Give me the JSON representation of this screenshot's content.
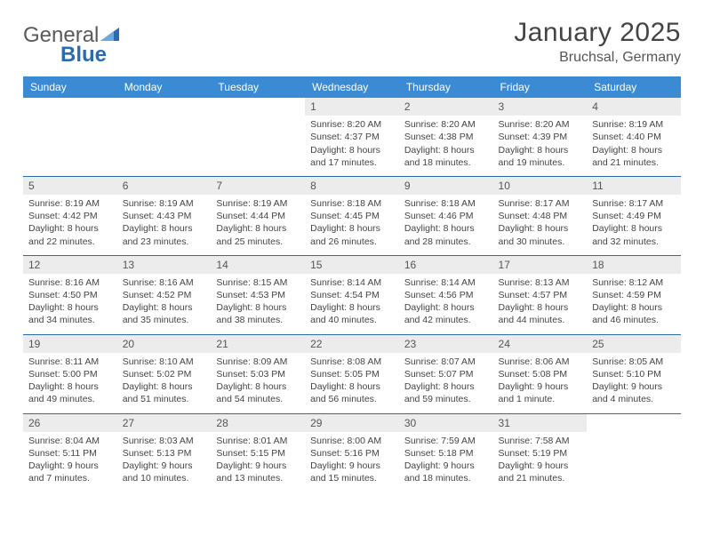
{
  "brand": {
    "part1": "General",
    "part2": "Blue"
  },
  "title": "January 2025",
  "location": "Bruchsal, Germany",
  "colors": {
    "header_bg": "#3b8bd4",
    "header_text": "#ffffff",
    "sep_border": "#2b6cb0",
    "daynum_bg": "#ececec",
    "text": "#444444"
  },
  "dayHeaders": [
    "Sunday",
    "Monday",
    "Tuesday",
    "Wednesday",
    "Thursday",
    "Friday",
    "Saturday"
  ],
  "weeks": [
    [
      null,
      null,
      null,
      {
        "n": "1",
        "sunrise": "8:20 AM",
        "sunset": "4:37 PM",
        "dlh": "8",
        "dlm": "17"
      },
      {
        "n": "2",
        "sunrise": "8:20 AM",
        "sunset": "4:38 PM",
        "dlh": "8",
        "dlm": "18"
      },
      {
        "n": "3",
        "sunrise": "8:20 AM",
        "sunset": "4:39 PM",
        "dlh": "8",
        "dlm": "19"
      },
      {
        "n": "4",
        "sunrise": "8:19 AM",
        "sunset": "4:40 PM",
        "dlh": "8",
        "dlm": "21"
      }
    ],
    [
      {
        "n": "5",
        "sunrise": "8:19 AM",
        "sunset": "4:42 PM",
        "dlh": "8",
        "dlm": "22"
      },
      {
        "n": "6",
        "sunrise": "8:19 AM",
        "sunset": "4:43 PM",
        "dlh": "8",
        "dlm": "23"
      },
      {
        "n": "7",
        "sunrise": "8:19 AM",
        "sunset": "4:44 PM",
        "dlh": "8",
        "dlm": "25"
      },
      {
        "n": "8",
        "sunrise": "8:18 AM",
        "sunset": "4:45 PM",
        "dlh": "8",
        "dlm": "26"
      },
      {
        "n": "9",
        "sunrise": "8:18 AM",
        "sunset": "4:46 PM",
        "dlh": "8",
        "dlm": "28"
      },
      {
        "n": "10",
        "sunrise": "8:17 AM",
        "sunset": "4:48 PM",
        "dlh": "8",
        "dlm": "30"
      },
      {
        "n": "11",
        "sunrise": "8:17 AM",
        "sunset": "4:49 PM",
        "dlh": "8",
        "dlm": "32"
      }
    ],
    [
      {
        "n": "12",
        "sunrise": "8:16 AM",
        "sunset": "4:50 PM",
        "dlh": "8",
        "dlm": "34"
      },
      {
        "n": "13",
        "sunrise": "8:16 AM",
        "sunset": "4:52 PM",
        "dlh": "8",
        "dlm": "35"
      },
      {
        "n": "14",
        "sunrise": "8:15 AM",
        "sunset": "4:53 PM",
        "dlh": "8",
        "dlm": "38"
      },
      {
        "n": "15",
        "sunrise": "8:14 AM",
        "sunset": "4:54 PM",
        "dlh": "8",
        "dlm": "40"
      },
      {
        "n": "16",
        "sunrise": "8:14 AM",
        "sunset": "4:56 PM",
        "dlh": "8",
        "dlm": "42"
      },
      {
        "n": "17",
        "sunrise": "8:13 AM",
        "sunset": "4:57 PM",
        "dlh": "8",
        "dlm": "44"
      },
      {
        "n": "18",
        "sunrise": "8:12 AM",
        "sunset": "4:59 PM",
        "dlh": "8",
        "dlm": "46"
      }
    ],
    [
      {
        "n": "19",
        "sunrise": "8:11 AM",
        "sunset": "5:00 PM",
        "dlh": "8",
        "dlm": "49"
      },
      {
        "n": "20",
        "sunrise": "8:10 AM",
        "sunset": "5:02 PM",
        "dlh": "8",
        "dlm": "51"
      },
      {
        "n": "21",
        "sunrise": "8:09 AM",
        "sunset": "5:03 PM",
        "dlh": "8",
        "dlm": "54"
      },
      {
        "n": "22",
        "sunrise": "8:08 AM",
        "sunset": "5:05 PM",
        "dlh": "8",
        "dlm": "56"
      },
      {
        "n": "23",
        "sunrise": "8:07 AM",
        "sunset": "5:07 PM",
        "dlh": "8",
        "dlm": "59"
      },
      {
        "n": "24",
        "sunrise": "8:06 AM",
        "sunset": "5:08 PM",
        "dlh": "9",
        "dlm": "1"
      },
      {
        "n": "25",
        "sunrise": "8:05 AM",
        "sunset": "5:10 PM",
        "dlh": "9",
        "dlm": "4"
      }
    ],
    [
      {
        "n": "26",
        "sunrise": "8:04 AM",
        "sunset": "5:11 PM",
        "dlh": "9",
        "dlm": "7"
      },
      {
        "n": "27",
        "sunrise": "8:03 AM",
        "sunset": "5:13 PM",
        "dlh": "9",
        "dlm": "10"
      },
      {
        "n": "28",
        "sunrise": "8:01 AM",
        "sunset": "5:15 PM",
        "dlh": "9",
        "dlm": "13"
      },
      {
        "n": "29",
        "sunrise": "8:00 AM",
        "sunset": "5:16 PM",
        "dlh": "9",
        "dlm": "15"
      },
      {
        "n": "30",
        "sunrise": "7:59 AM",
        "sunset": "5:18 PM",
        "dlh": "9",
        "dlm": "18"
      },
      {
        "n": "31",
        "sunrise": "7:58 AM",
        "sunset": "5:19 PM",
        "dlh": "9",
        "dlm": "21"
      },
      null
    ]
  ],
  "labels": {
    "sunrise": "Sunrise:",
    "sunset": "Sunset:",
    "daylight": "Daylight:",
    "hours_word": "hours",
    "and_word": "and",
    "minute_word": "minute",
    "minutes_word": "minutes"
  }
}
